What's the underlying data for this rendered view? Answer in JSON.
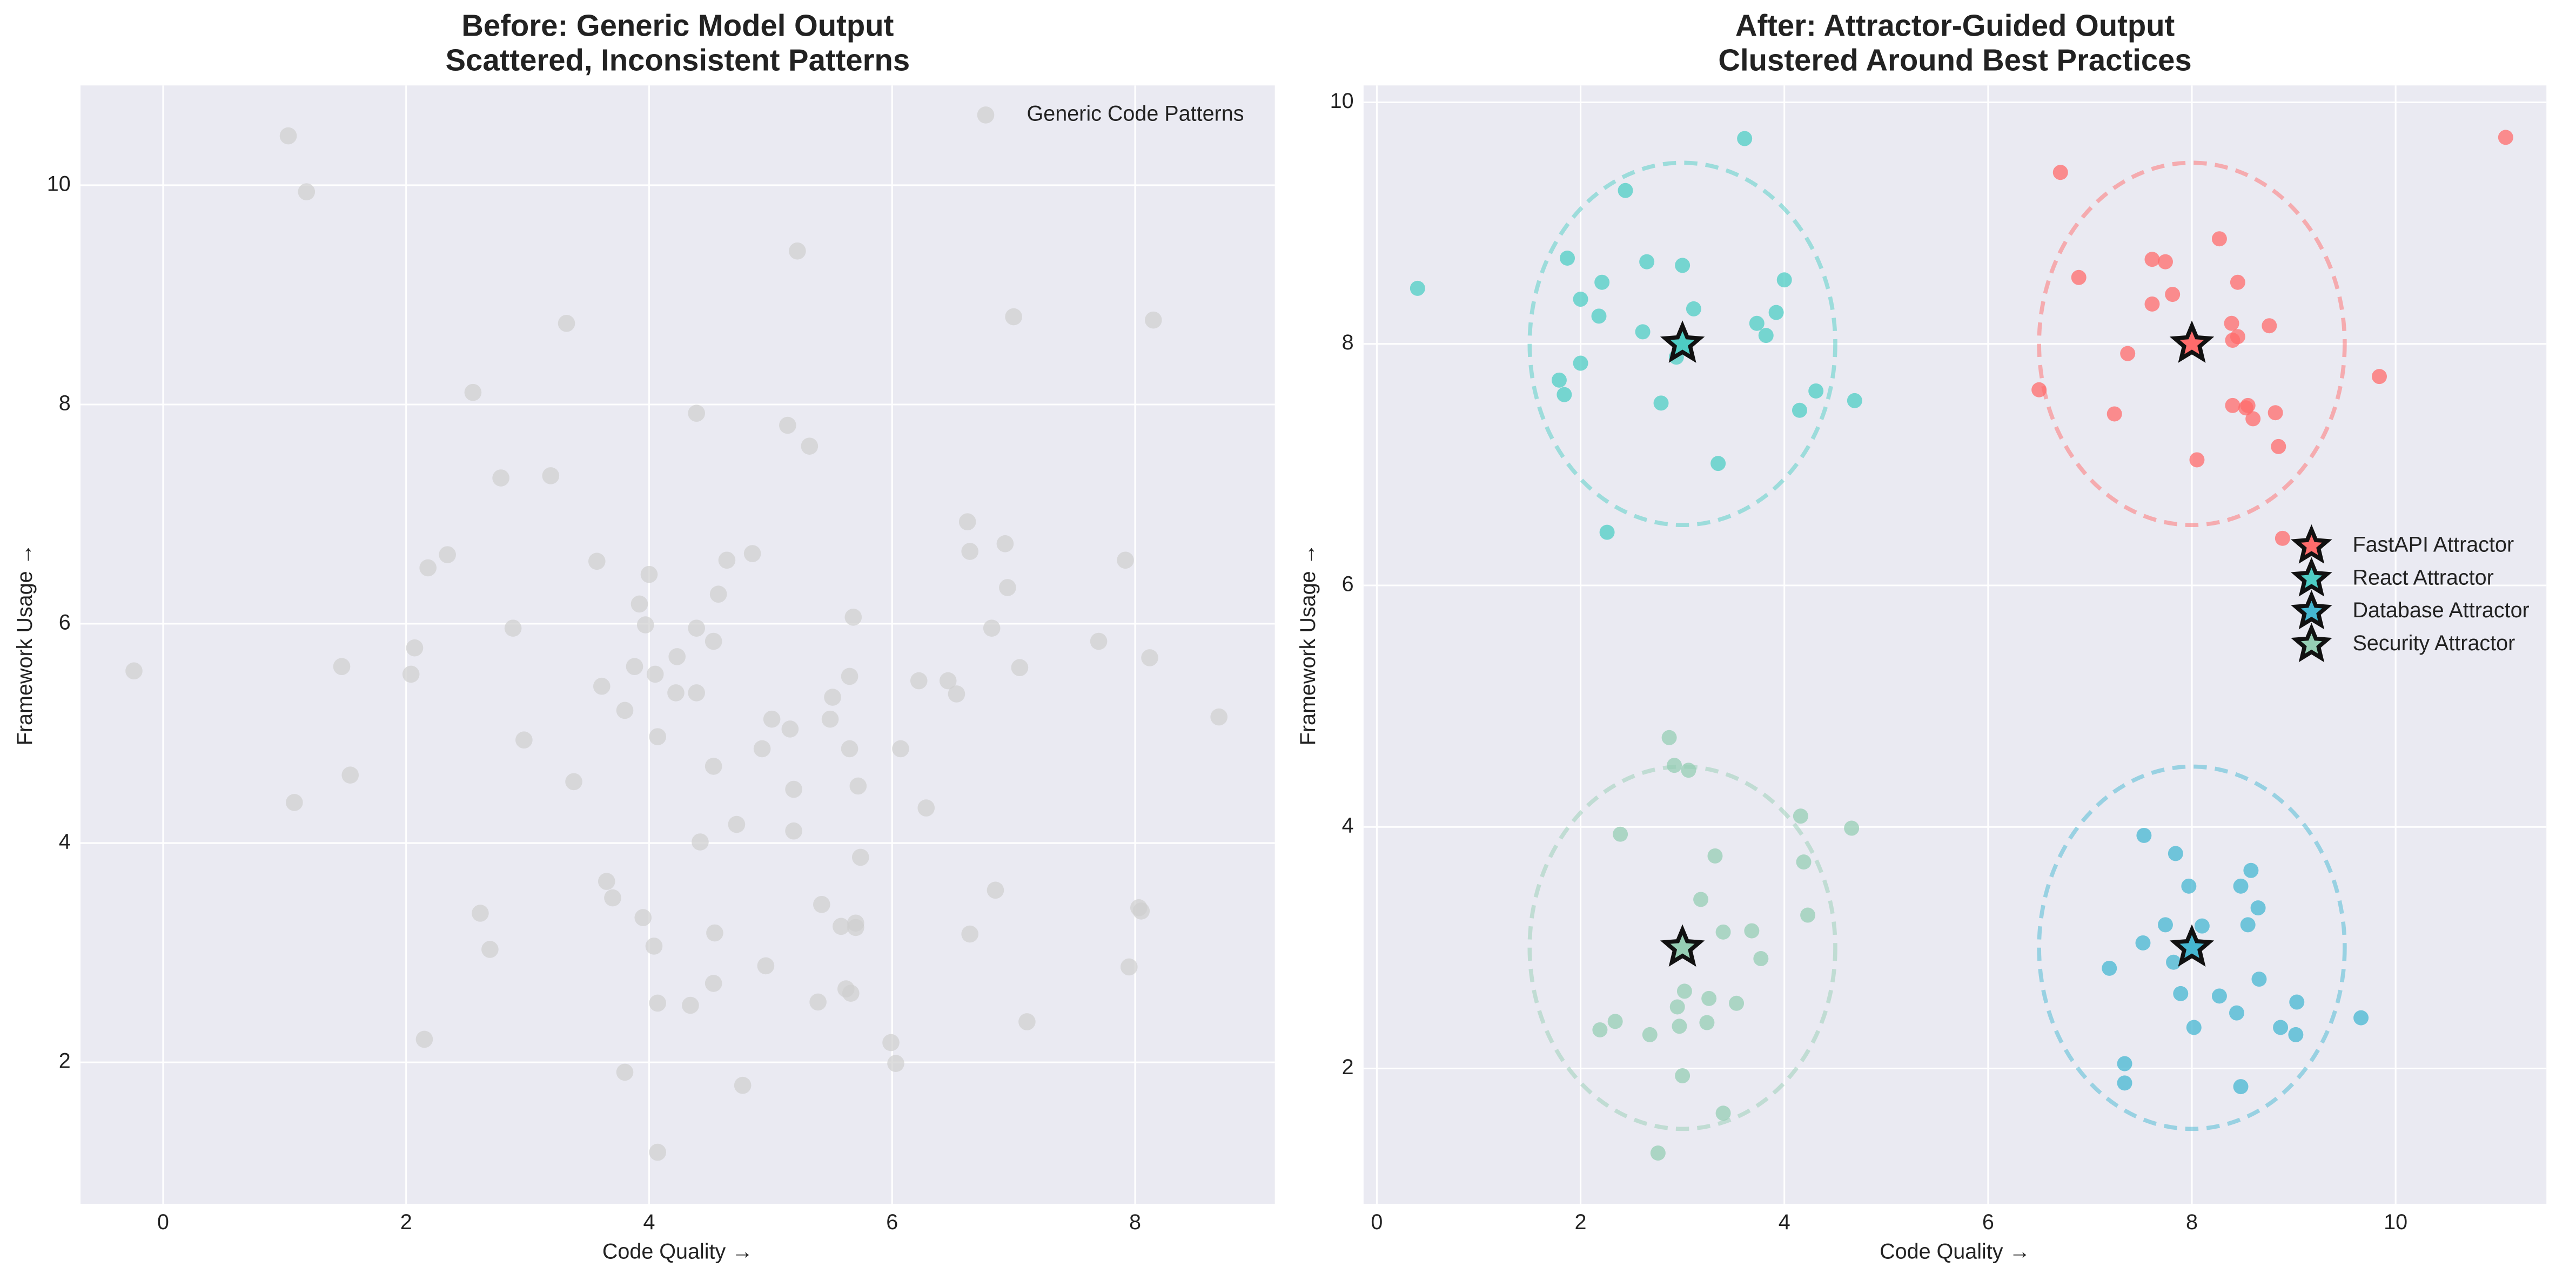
{
  "chart_data": [
    {
      "type": "scatter",
      "title": "Before: Generic Model Output",
      "subtitle": "Scattered, Inconsistent Patterns",
      "x_label": "Code Quality →",
      "y_label": "Framework Usage →",
      "xlim": [
        -0.68,
        9.15
      ],
      "ylim": [
        0.71,
        10.91
      ],
      "xticks": [
        0,
        2,
        4,
        6,
        8
      ],
      "yticks": [
        2,
        4,
        6,
        8,
        10
      ],
      "grid": true,
      "legend": "upper right",
      "series": [
        {
          "name": "Generic Code Patterns",
          "color": "#cfcfcf",
          "x": [
            -0.24,
            1.03,
            1.18,
            1.47,
            1.54,
            1.08,
            2.04,
            2.07,
            2.18,
            2.34,
            2.15,
            2.55,
            2.78,
            2.61,
            2.69,
            2.88,
            2.97,
            3.19,
            3.32,
            3.38,
            3.57,
            3.61,
            3.65,
            3.7,
            3.8,
            3.8,
            3.88,
            3.92,
            3.95,
            3.97,
            4.0,
            4.04,
            4.05,
            4.07,
            4.07,
            4.07,
            4.22,
            4.23,
            4.34,
            4.39,
            4.39,
            4.39,
            4.42,
            4.53,
            4.53,
            4.54,
            4.53,
            4.57,
            4.64,
            4.72,
            4.77,
            4.85,
            4.93,
            4.96,
            5.01,
            5.14,
            5.16,
            5.19,
            5.19,
            5.22,
            5.32,
            5.39,
            5.42,
            5.49,
            5.51,
            5.58,
            5.62,
            5.65,
            5.65,
            5.66,
            5.68,
            5.7,
            5.7,
            5.72,
            5.74,
            5.99,
            6.03,
            6.07,
            6.22,
            6.28,
            6.46,
            6.53,
            6.62,
            6.64,
            6.64,
            6.85,
            6.82,
            6.93,
            6.95,
            7.0,
            7.05,
            7.11,
            7.7,
            7.92,
            7.95,
            8.03,
            8.05,
            8.12,
            8.15,
            8.69
          ],
          "values": [
            5.57,
            10.45,
            9.94,
            5.61,
            4.62,
            4.37,
            5.54,
            5.78,
            6.51,
            6.63,
            2.21,
            8.11,
            7.33,
            3.36,
            3.03,
            5.96,
            4.94,
            7.35,
            8.74,
            4.56,
            6.57,
            5.43,
            3.65,
            3.5,
            5.21,
            1.91,
            5.61,
            6.18,
            3.32,
            5.99,
            6.45,
            3.06,
            5.54,
            4.97,
            2.54,
            1.18,
            5.37,
            5.7,
            2.52,
            5.96,
            5.37,
            7.92,
            4.01,
            5.84,
            4.7,
            3.18,
            2.72,
            6.27,
            6.58,
            4.17,
            1.79,
            6.64,
            4.86,
            2.88,
            5.13,
            7.81,
            5.04,
            4.49,
            4.11,
            9.4,
            7.62,
            2.55,
            3.44,
            5.13,
            5.33,
            3.24,
            2.67,
            5.52,
            4.86,
            2.63,
            6.06,
            3.27,
            3.23,
            4.52,
            3.87,
            2.18,
            1.99,
            4.86,
            5.48,
            4.32,
            5.48,
            5.36,
            6.93,
            6.66,
            3.17,
            3.57,
            5.96,
            6.73,
            6.33,
            8.8,
            5.6,
            2.37,
            5.84,
            6.58,
            2.87,
            3.41,
            3.38,
            5.69,
            8.77,
            5.15
          ]
        }
      ]
    },
    {
      "type": "scatter",
      "title": "After: Attractor-Guided Output",
      "subtitle": "Clustered Around Best Practices",
      "x_label": "Code Quality →",
      "y_label": "Framework Usage →",
      "xlim": [
        -0.13,
        11.48
      ],
      "ylim": [
        0.88,
        10.14
      ],
      "xticks": [
        0,
        2,
        4,
        6,
        8,
        10
      ],
      "yticks": [
        2,
        4,
        6,
        8,
        10
      ],
      "grid": true,
      "legend": "center right",
      "series": [
        {
          "name": "FastAPI Attractor",
          "color": "#FF6B6B",
          "attractor": [
            8,
            8
          ],
          "radius": 1.5,
          "x": [
            6.71,
            6.89,
            6.5,
            7.24,
            7.37,
            7.61,
            7.74,
            7.61,
            7.81,
            8.27,
            8.45,
            8.39,
            8.4,
            8.45,
            8.76,
            8.4,
            8.53,
            8.55,
            8.6,
            8.82,
            8.85,
            8.05,
            8.89,
            9.84,
            11.08
          ],
          "values": [
            9.42,
            8.55,
            7.62,
            7.42,
            7.92,
            8.7,
            8.68,
            8.33,
            8.41,
            8.87,
            8.51,
            8.17,
            8.03,
            8.06,
            8.15,
            7.49,
            7.47,
            7.49,
            7.38,
            7.43,
            7.15,
            7.04,
            6.39,
            7.73,
            9.71
          ]
        },
        {
          "name": "React Attractor",
          "color": "#4ECDC4",
          "attractor": [
            3,
            8
          ],
          "radius": 1.5,
          "x": [
            0.4,
            1.84,
            1.87,
            2.0,
            2.21,
            2.18,
            2.0,
            1.79,
            2.44,
            2.65,
            2.61,
            3.0,
            3.11,
            2.94,
            2.79,
            2.26,
            3.35,
            3.61,
            3.73,
            3.82,
            3.92,
            4.0,
            4.15,
            4.31,
            4.69
          ],
          "values": [
            8.46,
            7.58,
            8.71,
            8.37,
            8.51,
            8.23,
            7.84,
            7.7,
            9.27,
            8.68,
            8.1,
            8.65,
            8.29,
            7.89,
            7.51,
            6.44,
            7.01,
            9.7,
            8.17,
            8.07,
            8.26,
            8.53,
            7.45,
            7.61,
            7.53
          ]
        },
        {
          "name": "Database Attractor",
          "color": "#45B7D1",
          "attractor": [
            8,
            3
          ],
          "radius": 1.5,
          "x": [
            7.53,
            7.84,
            7.97,
            8.58,
            8.48,
            8.65,
            7.74,
            8.1,
            8.55,
            7.52,
            7.19,
            7.82,
            8.66,
            7.89,
            8.27,
            8.44,
            9.03,
            8.87,
            9.02,
            8.02,
            9.66,
            7.34,
            7.34,
            8.48
          ],
          "values": [
            3.93,
            3.78,
            3.51,
            3.64,
            3.51,
            3.33,
            3.19,
            3.18,
            3.19,
            3.04,
            2.83,
            2.88,
            2.74,
            2.62,
            2.6,
            2.46,
            2.55,
            2.34,
            2.28,
            2.34,
            2.42,
            2.04,
            1.88,
            1.85
          ]
        },
        {
          "name": "Security Attractor",
          "color": "#96CEB4",
          "attractor": [
            3,
            3
          ],
          "radius": 1.5,
          "x": [
            2.87,
            2.92,
            3.06,
            2.39,
            3.32,
            3.18,
            4.16,
            4.19,
            4.66,
            4.23,
            3.4,
            3.68,
            3.77,
            3.02,
            2.95,
            3.26,
            3.53,
            2.97,
            3.24,
            2.19,
            2.34,
            2.68,
            3.0,
            3.4,
            2.76
          ],
          "values": [
            4.74,
            4.51,
            4.47,
            3.94,
            3.76,
            3.4,
            4.09,
            3.71,
            3.99,
            3.27,
            3.13,
            3.14,
            2.91,
            2.64,
            2.51,
            2.58,
            2.54,
            2.35,
            2.38,
            2.32,
            2.39,
            2.28,
            1.94,
            1.63,
            1.3
          ]
        }
      ]
    }
  ]
}
